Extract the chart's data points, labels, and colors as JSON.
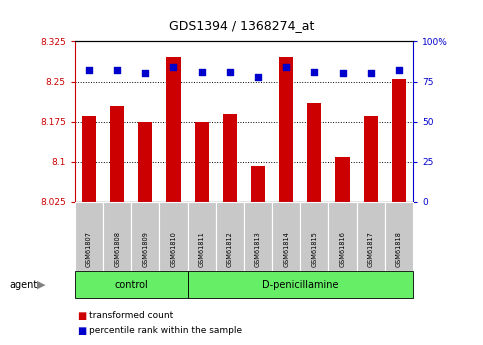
{
  "title": "GDS1394 / 1368274_at",
  "samples": [
    "GSM61807",
    "GSM61808",
    "GSM61809",
    "GSM61810",
    "GSM61811",
    "GSM61812",
    "GSM61813",
    "GSM61814",
    "GSM61815",
    "GSM61816",
    "GSM61817",
    "GSM61818"
  ],
  "red_values": [
    8.185,
    8.205,
    8.175,
    8.295,
    8.175,
    8.19,
    8.092,
    8.295,
    8.21,
    8.108,
    8.185,
    8.255
  ],
  "blue_pct": [
    82,
    82,
    80,
    84,
    81,
    81,
    78,
    84,
    81,
    80,
    80,
    82
  ],
  "ylim_left": [
    8.025,
    8.325
  ],
  "ylim_right": [
    0,
    100
  ],
  "yticks_left": [
    8.025,
    8.1,
    8.175,
    8.25,
    8.325
  ],
  "yticks_right": [
    0,
    25,
    50,
    75,
    100
  ],
  "control_count": 4,
  "bar_color": "#CC0000",
  "dot_color": "#0000CC",
  "bar_bottom": 8.025,
  "sample_box_color": "#C8C8C8",
  "group_box_color": "#66EE66",
  "legend_red": "transformed count",
  "legend_blue": "percentile rank within the sample"
}
